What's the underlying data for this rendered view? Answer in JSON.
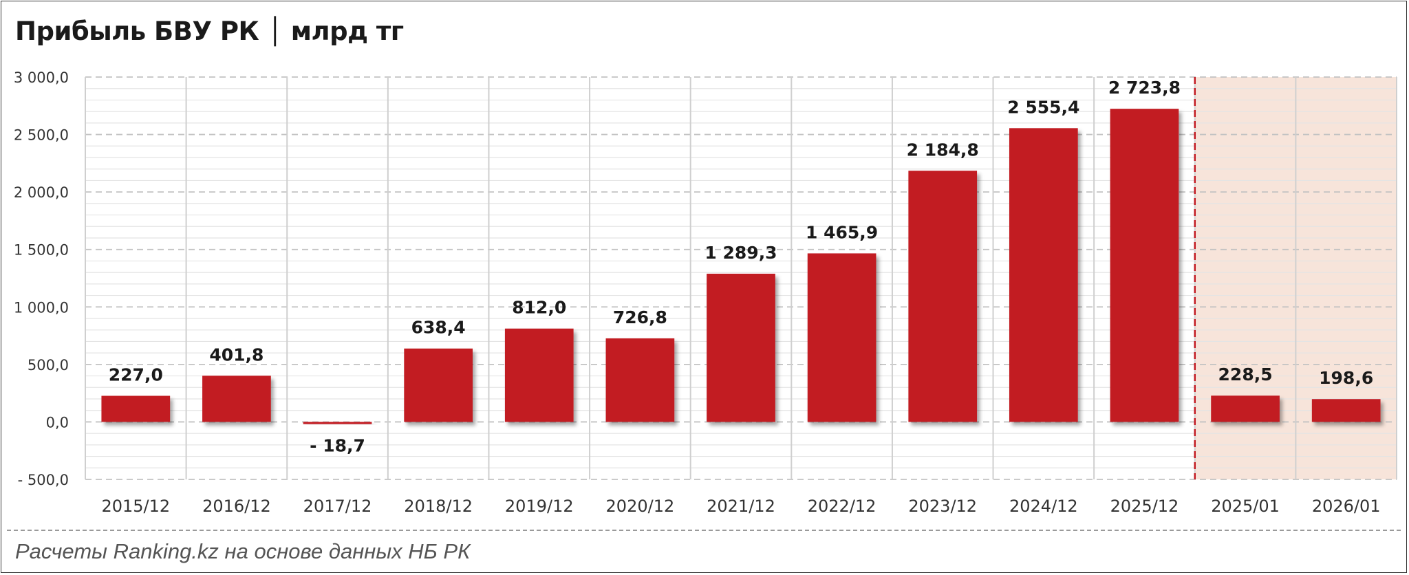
{
  "title": "Прибыль БВУ РК │ млрд тг",
  "source": "Расчеты Ranking.kz на основе данных НБ РК",
  "colors": {
    "bar": "#c21c24",
    "forecast_bg": "#f7e4da",
    "separator": "#c21c24",
    "grid": "#cfcfcf",
    "text": "#1a1a1a"
  },
  "chart_data": {
    "type": "bar",
    "title": "Прибыль БВУ РК │ млрд тг",
    "xlabel": "",
    "ylabel": "",
    "ylim": [
      -500,
      3000
    ],
    "grid": true,
    "yticks": [
      {
        "value": 3000,
        "label": "3 000,0"
      },
      {
        "value": 2500,
        "label": "2 500,0"
      },
      {
        "value": 2000,
        "label": "2 000,0"
      },
      {
        "value": 1500,
        "label": "1 500,0"
      },
      {
        "value": 1000,
        "label": "1 000,0"
      },
      {
        "value": 500,
        "label": "500,0"
      },
      {
        "value": 0,
        "label": "0,0"
      },
      {
        "value": -500,
        "label": "- 500,0"
      }
    ],
    "categories": [
      "2015/12",
      "2016/12",
      "2017/12",
      "2018/12",
      "2019/12",
      "2020/12",
      "2021/12",
      "2022/12",
      "2023/12",
      "2024/12",
      "2025/12",
      "2025/01",
      "2026/01"
    ],
    "values": [
      227.0,
      401.8,
      -18.7,
      638.4,
      812.0,
      726.8,
      1289.3,
      1465.9,
      2184.8,
      2555.4,
      2723.8,
      228.5,
      198.6
    ],
    "labels": [
      "227,0",
      "401,8",
      "- 18,7",
      "638,4",
      "812,0",
      "726,8",
      "1 289,3",
      "1 465,9",
      "2 184,8",
      "2 555,4",
      "2 723,8",
      "228,5",
      "198,6"
    ],
    "highlighted_categories": [
      "2025/01",
      "2026/01"
    ]
  }
}
